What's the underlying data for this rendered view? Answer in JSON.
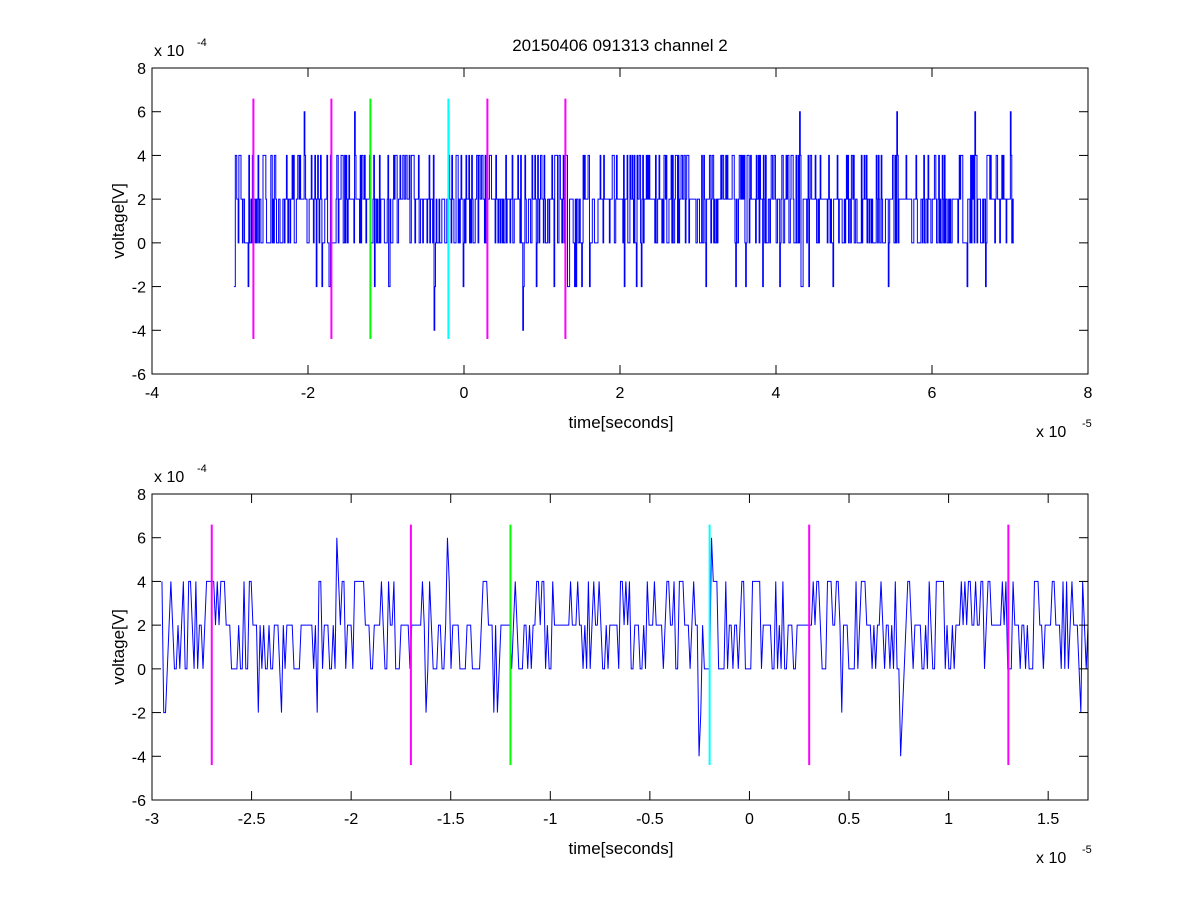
{
  "figure": {
    "title": "20150406 091313 channel 2"
  },
  "chart_data": [
    {
      "type": "line",
      "title": "20150406 091313 channel 2",
      "xlabel": "time[seconds]",
      "ylabel": "voltage[V]",
      "x_multiplier_label": "x 10",
      "x_multiplier_exp": "-5",
      "y_multiplier_label": "x 10",
      "y_multiplier_exp": "-4",
      "xlim": [
        -4,
        8
      ],
      "ylim": [
        -6,
        8
      ],
      "x_ticks": [
        -4,
        -2,
        0,
        2,
        4,
        6,
        8
      ],
      "x_tick_labels": [
        "-4",
        "-2",
        "0",
        "2",
        "4",
        "6",
        "8"
      ],
      "y_ticks": [
        -6,
        -4,
        -2,
        0,
        2,
        4,
        6,
        8
      ],
      "y_tick_labels": [
        "-6",
        "-4",
        "-2",
        "0",
        "2",
        "4",
        "6",
        "8"
      ],
      "grid": false,
      "legend": "none",
      "signal": {
        "color": "#0000ff",
        "x_range": [
          -2.95,
          7.05
        ],
        "levels": [
          -4,
          -2,
          0,
          2,
          4,
          6
        ],
        "note_values": "quantized noise in steps of 2e-4 V"
      },
      "markers": [
        {
          "x": -2.7,
          "color": "#ff00ff",
          "ymin": -4.4,
          "ymax": 6.6
        },
        {
          "x": -1.7,
          "color": "#ff00ff",
          "ymin": -4.4,
          "ymax": 6.6
        },
        {
          "x": -1.2,
          "color": "#00ff00",
          "ymin": -4.4,
          "ymax": 6.6
        },
        {
          "x": -0.2,
          "color": "#00ffff",
          "ymin": -4.4,
          "ymax": 6.6
        },
        {
          "x": 0.3,
          "color": "#ff00ff",
          "ymin": -4.4,
          "ymax": 6.6
        },
        {
          "x": 1.3,
          "color": "#ff00ff",
          "ymin": -4.4,
          "ymax": 6.6
        }
      ],
      "spikes": [
        {
          "x": -2.95,
          "y": -2
        },
        {
          "x": -2.05,
          "y": 6
        },
        {
          "x": -1.4,
          "y": 6
        },
        {
          "x": -0.38,
          "y": -4
        },
        {
          "x": -0.2,
          "y": 6
        },
        {
          "x": 0.75,
          "y": -4
        },
        {
          "x": 4.3,
          "y": 6
        },
        {
          "x": 5.55,
          "y": 6
        },
        {
          "x": 6.55,
          "y": 6
        },
        {
          "x": 7.0,
          "y": 6
        }
      ]
    },
    {
      "type": "line",
      "xlabel": "time[seconds]",
      "ylabel": "voltage[V]",
      "x_multiplier_label": "x 10",
      "x_multiplier_exp": "-5",
      "y_multiplier_label": "x 10",
      "y_multiplier_exp": "-4",
      "xlim": [
        -3.0,
        1.7
      ],
      "ylim": [
        -6,
        8
      ],
      "x_ticks": [
        -3,
        -2.5,
        -2,
        -1.5,
        -1,
        -0.5,
        0,
        0.5,
        1,
        1.5
      ],
      "x_tick_labels": [
        "-3",
        "-2.5",
        "-2",
        "-1.5",
        "-1",
        "-0.5",
        "0",
        "0.5",
        "1",
        "1.5"
      ],
      "y_ticks": [
        -6,
        -4,
        -2,
        0,
        2,
        4,
        6,
        8
      ],
      "y_tick_labels": [
        "-6",
        "-4",
        "-2",
        "0",
        "2",
        "4",
        "6",
        "8"
      ],
      "grid": false,
      "legend": "none",
      "signal": {
        "color": "#0000ff",
        "x_range": [
          -2.95,
          1.7
        ],
        "levels": [
          -4,
          -2,
          0,
          2,
          4,
          6
        ]
      },
      "markers": [
        {
          "x": -2.7,
          "color": "#ff00ff",
          "ymin": -4.4,
          "ymax": 6.6
        },
        {
          "x": -1.7,
          "color": "#ff00ff",
          "ymin": -4.4,
          "ymax": 6.6
        },
        {
          "x": -1.2,
          "color": "#00ff00",
          "ymin": -4.4,
          "ymax": 6.6
        },
        {
          "x": -0.2,
          "color": "#00ffff",
          "ymin": -4.4,
          "ymax": 6.6
        },
        {
          "x": 0.3,
          "color": "#ff00ff",
          "ymin": -4.4,
          "ymax": 6.6
        },
        {
          "x": 1.3,
          "color": "#ff00ff",
          "ymin": -4.4,
          "ymax": 6.6
        }
      ],
      "spikes": [
        {
          "x": -2.94,
          "y": -2
        },
        {
          "x": -2.07,
          "y": 6
        },
        {
          "x": -1.52,
          "y": 6
        },
        {
          "x": -0.25,
          "y": -4
        },
        {
          "x": -0.19,
          "y": 6
        },
        {
          "x": 0.76,
          "y": -4
        }
      ]
    }
  ]
}
